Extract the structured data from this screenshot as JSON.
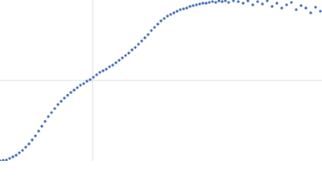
{
  "chart_data": {
    "type": "scatter",
    "color": "#3d66b5",
    "xlim": [
      0,
      400
    ],
    "ylim": [
      0,
      200
    ],
    "xgrid": [
      115
    ],
    "ygrid": [
      100
    ],
    "x": [
      0,
      4,
      8,
      12,
      16,
      20,
      24,
      28,
      32,
      36,
      40,
      44,
      48,
      52,
      56,
      60,
      64,
      68,
      72,
      76,
      80,
      84,
      88,
      92,
      96,
      100,
      104,
      108,
      112,
      116,
      120,
      124,
      128,
      132,
      136,
      140,
      144,
      148,
      152,
      156,
      160,
      164,
      168,
      172,
      176,
      180,
      184,
      188,
      192,
      196,
      200,
      204,
      208,
      212,
      216,
      220,
      224,
      228,
      232,
      236,
      240,
      244,
      248,
      252,
      256,
      260,
      264,
      268,
      272,
      276,
      280,
      284,
      290,
      296,
      302,
      308,
      314,
      320,
      326,
      332,
      338,
      344,
      350,
      356,
      362,
      368,
      374,
      380,
      386,
      392,
      398
    ],
    "y": [
      0,
      0.5,
      1,
      3,
      5,
      7,
      10,
      13,
      17,
      21,
      26,
      31,
      37,
      43,
      49,
      55,
      60,
      65,
      70,
      74,
      78,
      81.5,
      85,
      88,
      91,
      94,
      96,
      99,
      101,
      104,
      107,
      110,
      112,
      114,
      117,
      119,
      122,
      125,
      128,
      131,
      134,
      138,
      141,
      145,
      149,
      153,
      157,
      162,
      166,
      170,
      174,
      177,
      180,
      182,
      184,
      186,
      188,
      189,
      190,
      192,
      193,
      194,
      195,
      196,
      196,
      197,
      198,
      197,
      199,
      198,
      199,
      197,
      199,
      198,
      196,
      199,
      194,
      198,
      195,
      199,
      192,
      196,
      190,
      194,
      197,
      188,
      193,
      190,
      184,
      191,
      186
    ]
  }
}
